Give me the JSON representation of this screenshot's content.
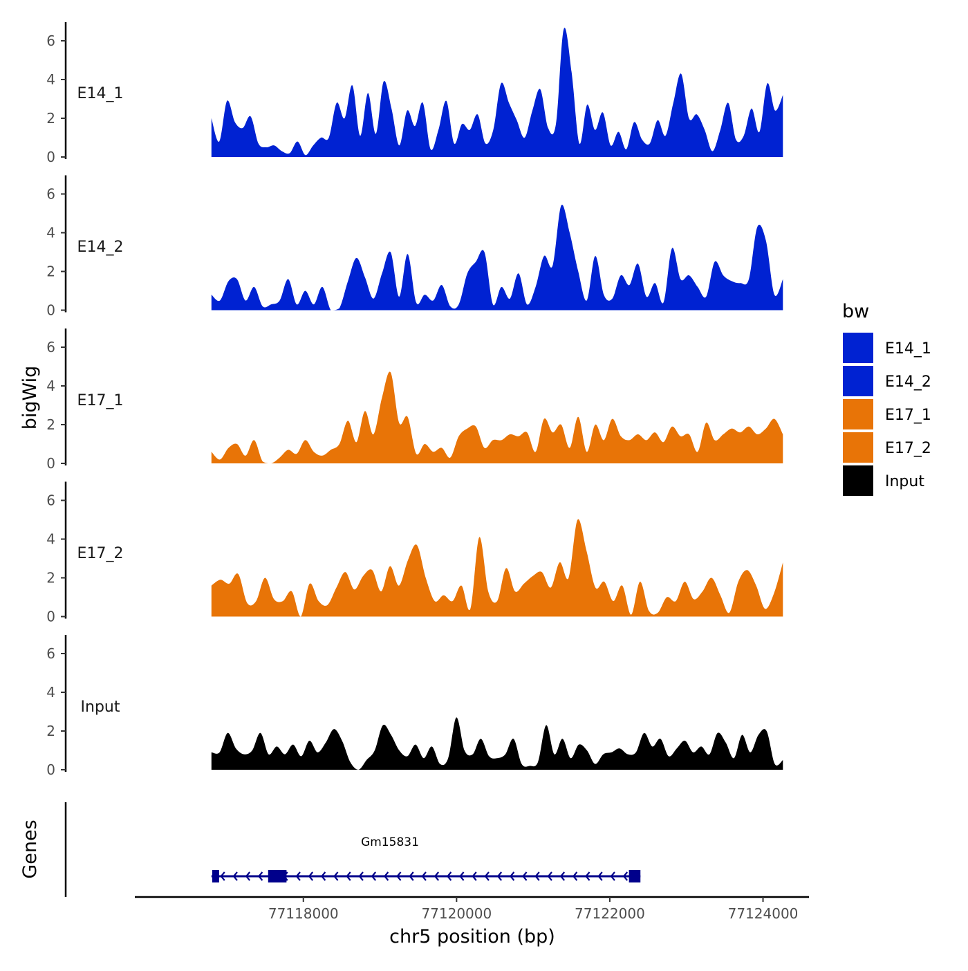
{
  "chart_data": {
    "type": "area",
    "chromosome": "chr5",
    "xlabel": "chr5 position (bp)",
    "ylabel": "bigWig",
    "genes_label": "Genes",
    "xlim": [
      77115800,
      77124600
    ],
    "data_x_range": [
      77116800,
      77124260
    ],
    "xticks": [
      77118000,
      77120000,
      77122000,
      77124000
    ],
    "xtick_labels": [
      "77118000",
      "77120000",
      "77122000",
      "77124000"
    ],
    "ylim": [
      0,
      7
    ],
    "yticks": [
      0,
      2,
      4,
      6
    ],
    "ytick_labels": [
      "0",
      "2",
      "4",
      "6"
    ],
    "legend": {
      "title": "bw",
      "entries": [
        {
          "name": "E14_1",
          "color": "#0022d2"
        },
        {
          "name": "E14_2",
          "color": "#0022d2"
        },
        {
          "name": "E17_1",
          "color": "#e87407"
        },
        {
          "name": "E17_2",
          "color": "#e87407"
        },
        {
          "name": "Input",
          "color": "#000000"
        }
      ]
    },
    "series": [
      {
        "name": "E14_1",
        "color": "#0022d2",
        "values": [
          2.0,
          0.8,
          2.9,
          1.8,
          1.5,
          2.1,
          0.7,
          0.5,
          0.6,
          0.3,
          0.2,
          0.8,
          0.1,
          0.6,
          1.0,
          1.0,
          2.8,
          2.0,
          3.7,
          1.1,
          3.3,
          1.2,
          3.9,
          2.5,
          0.6,
          2.4,
          1.6,
          2.8,
          0.4,
          1.4,
          2.9,
          0.7,
          1.7,
          1.4,
          2.2,
          0.7,
          1.4,
          3.8,
          2.8,
          1.9,
          1.0,
          2.4,
          3.5,
          1.5,
          1.7,
          6.6,
          4.4,
          0.7,
          2.7,
          1.4,
          2.3,
          0.6,
          1.3,
          0.4,
          1.8,
          0.9,
          0.7,
          1.9,
          1.1,
          2.8,
          4.3,
          2.0,
          2.2,
          1.4,
          0.3,
          1.4,
          2.8,
          0.9,
          1.1,
          2.5,
          1.3,
          3.8,
          2.4,
          3.2
        ]
      },
      {
        "name": "E14_2",
        "color": "#0022d2",
        "values": [
          0.8,
          0.5,
          1.5,
          1.6,
          0.5,
          1.2,
          0.2,
          0.3,
          0.5,
          1.6,
          0.3,
          1.0,
          0.3,
          1.2,
          0.0,
          0.1,
          1.5,
          2.7,
          1.7,
          0.6,
          1.9,
          3.0,
          0.7,
          2.9,
          0.4,
          0.8,
          0.5,
          1.3,
          0.2,
          0.3,
          1.9,
          2.5,
          3.0,
          0.3,
          1.2,
          0.6,
          1.9,
          0.3,
          1.2,
          2.8,
          2.3,
          5.4,
          4.0,
          2.0,
          0.5,
          2.8,
          0.8,
          0.6,
          1.8,
          1.3,
          2.4,
          0.7,
          1.4,
          0.4,
          3.2,
          1.6,
          1.8,
          1.2,
          0.7,
          2.5,
          1.8,
          1.5,
          1.4,
          1.6,
          4.3,
          3.6,
          0.8,
          1.6
        ]
      },
      {
        "name": "E17_1",
        "color": "#e87407",
        "values": [
          0.6,
          0.2,
          0.8,
          1.0,
          0.4,
          1.2,
          0.1,
          0.0,
          0.3,
          0.7,
          0.5,
          1.2,
          0.6,
          0.4,
          0.7,
          1.0,
          2.2,
          1.1,
          2.7,
          1.5,
          3.4,
          4.7,
          2.1,
          2.4,
          0.5,
          1.0,
          0.6,
          0.8,
          0.3,
          1.4,
          1.8,
          1.9,
          0.8,
          1.2,
          1.2,
          1.5,
          1.4,
          1.6,
          0.6,
          2.3,
          1.6,
          2.0,
          0.8,
          2.4,
          0.6,
          2.0,
          1.2,
          2.3,
          1.4,
          1.2,
          1.5,
          1.2,
          1.6,
          1.1,
          1.9,
          1.4,
          1.5,
          0.6,
          2.1,
          1.2,
          1.5,
          1.8,
          1.6,
          1.9,
          1.5,
          1.8,
          2.3,
          1.5
        ]
      },
      {
        "name": "E17_2",
        "color": "#e87407",
        "values": [
          1.6,
          1.9,
          1.7,
          2.2,
          0.7,
          0.8,
          2.0,
          0.9,
          0.8,
          1.3,
          0.0,
          1.7,
          0.8,
          0.6,
          1.5,
          2.3,
          1.4,
          2.1,
          2.4,
          1.3,
          2.6,
          1.6,
          2.9,
          3.7,
          2.0,
          0.8,
          1.1,
          0.8,
          1.6,
          0.4,
          4.1,
          1.3,
          0.8,
          2.5,
          1.3,
          1.7,
          2.1,
          2.3,
          1.5,
          2.8,
          2.0,
          5.0,
          3.4,
          1.5,
          1.8,
          0.8,
          1.6,
          0.1,
          1.8,
          0.3,
          0.2,
          1.0,
          0.8,
          1.8,
          0.9,
          1.3,
          2.0,
          1.1,
          0.2,
          1.8,
          2.4,
          1.6,
          0.4,
          1.2,
          2.8
        ]
      },
      {
        "name": "Input",
        "color": "#000000",
        "values": [
          0.9,
          0.9,
          1.9,
          1.1,
          0.8,
          1.0,
          1.9,
          0.8,
          1.2,
          0.8,
          1.3,
          0.7,
          1.5,
          0.9,
          1.4,
          2.1,
          1.5,
          0.4,
          0.0,
          0.5,
          1.0,
          2.3,
          1.8,
          1.0,
          0.7,
          1.3,
          0.6,
          1.2,
          0.3,
          0.6,
          2.7,
          1.0,
          0.8,
          1.6,
          0.7,
          0.6,
          0.8,
          1.6,
          0.3,
          0.2,
          0.4,
          2.3,
          0.8,
          1.6,
          0.6,
          1.3,
          1.0,
          0.3,
          0.8,
          0.9,
          1.1,
          0.8,
          0.9,
          1.9,
          1.2,
          1.6,
          0.7,
          1.1,
          1.5,
          0.9,
          1.2,
          0.8,
          1.9,
          1.4,
          0.6,
          1.8,
          0.9,
          1.8,
          2.0,
          0.3,
          0.5
        ]
      }
    ],
    "genes": [
      {
        "name": "Gm15831",
        "start": 77116800,
        "end": 77122400,
        "strand": "-",
        "exons": [
          [
            77116810,
            77116900
          ],
          [
            77117540,
            77117780
          ],
          [
            77122250,
            77122400
          ]
        ],
        "color": "#00008b"
      }
    ]
  }
}
